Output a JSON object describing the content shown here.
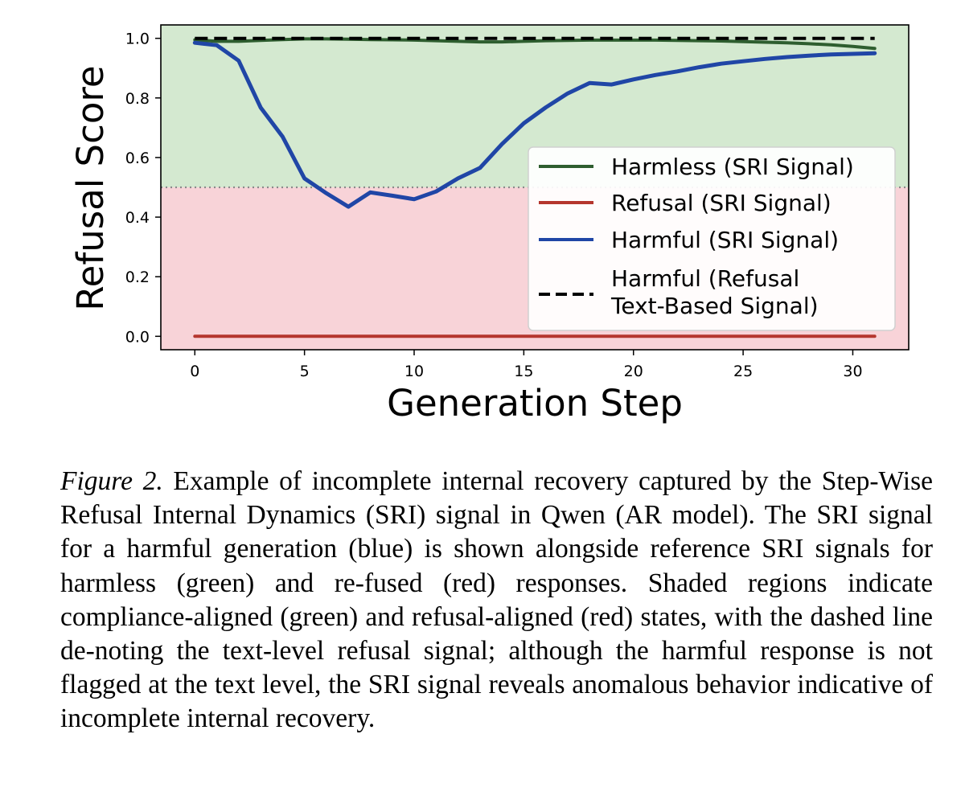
{
  "chart_data": {
    "type": "line",
    "xlabel": "Generation Step",
    "ylabel": "Refusal Score",
    "xlim": [
      -1.55,
      32.55
    ],
    "ylim": [
      -0.045,
      1.045
    ],
    "xticks": [
      0,
      5,
      10,
      15,
      20,
      25,
      30
    ],
    "xtick_labels": [
      "0",
      "5",
      "10",
      "15",
      "20",
      "25",
      "30"
    ],
    "yticks": [
      0.0,
      0.2,
      0.4,
      0.6,
      0.8,
      1.0
    ],
    "ytick_labels": [
      "0.0",
      "0.2",
      "0.4",
      "0.6",
      "0.8",
      "1.0"
    ],
    "threshold": 0.5,
    "regions": [
      {
        "name": "compliance-aligned",
        "from": 0.5,
        "to": 1.045,
        "color": "#d4e9d0"
      },
      {
        "name": "refusal-aligned",
        "from": -0.045,
        "to": 0.5,
        "color": "#f8d3d8"
      }
    ],
    "legend_position": "center-right",
    "series": [
      {
        "name": "Harmless (SRI Signal)",
        "color": "#2e5e2f",
        "style": "solid",
        "x": [
          0,
          1,
          2,
          3,
          4,
          5,
          6,
          7,
          8,
          9,
          10,
          11,
          12,
          13,
          14,
          15,
          16,
          17,
          18,
          19,
          20,
          21,
          22,
          23,
          24,
          25,
          26,
          27,
          28,
          29,
          30,
          31
        ],
        "values": [
          0.995,
          0.99,
          0.99,
          0.993,
          0.996,
          0.998,
          0.998,
          0.997,
          0.996,
          0.995,
          0.994,
          0.992,
          0.99,
          0.988,
          0.988,
          0.99,
          0.992,
          0.993,
          0.994,
          0.994,
          0.994,
          0.994,
          0.993,
          0.992,
          0.991,
          0.989,
          0.987,
          0.985,
          0.982,
          0.978,
          0.973,
          0.966
        ]
      },
      {
        "name": "Refusal (SRI Signal)",
        "color": "#b5362e",
        "style": "solid",
        "x": [
          0,
          1,
          2,
          3,
          4,
          5,
          6,
          7,
          8,
          9,
          10,
          11,
          12,
          13,
          14,
          15,
          16,
          17,
          18,
          19,
          20,
          21,
          22,
          23,
          24,
          25,
          26,
          27,
          28,
          29,
          30,
          31
        ],
        "values": [
          0,
          0,
          0,
          0,
          0,
          0,
          0,
          0,
          0,
          0,
          0,
          0,
          0,
          0,
          0,
          0,
          0,
          0,
          0,
          0,
          0,
          0,
          0,
          0,
          0,
          0,
          0,
          0,
          0,
          0,
          0,
          0
        ]
      },
      {
        "name": "Harmful (SRI Signal)",
        "color": "#2046a6",
        "style": "solid",
        "x": [
          0,
          1,
          2,
          3,
          4,
          5,
          6,
          7,
          8,
          9,
          10,
          11,
          12,
          13,
          14,
          15,
          16,
          17,
          18,
          19,
          20,
          21,
          22,
          23,
          24,
          25,
          26,
          27,
          28,
          29,
          30,
          31
        ],
        "values": [
          0.985,
          0.977,
          0.925,
          0.768,
          0.67,
          0.53,
          0.48,
          0.435,
          0.483,
          0.472,
          0.46,
          0.486,
          0.53,
          0.565,
          0.645,
          0.715,
          0.768,
          0.815,
          0.85,
          0.845,
          0.862,
          0.877,
          0.889,
          0.903,
          0.915,
          0.923,
          0.931,
          0.937,
          0.942,
          0.946,
          0.948,
          0.95
        ]
      },
      {
        "name": "Harmful (Refusal Text-Based Signal)",
        "legend_lines": [
          "Harmful (Refusal",
          "Text-Based Signal)"
        ],
        "color": "#000000",
        "style": "dashed",
        "x": [
          0,
          31
        ],
        "values": [
          1.0,
          1.0
        ]
      }
    ]
  },
  "caption": {
    "label": "Figure 2.",
    "text": "Example of incomplete internal recovery captured by the Step-Wise Refusal Internal Dynamics (SRI) signal in Qwen (AR model). The SRI signal for a harmful generation (blue) is shown alongside reference SRI signals for harmless (green) and re-fused (red) responses. Shaded regions indicate compliance-aligned (green) and refusal-aligned (red) states, with the dashed line de-noting the text-level refusal signal; although the harmful response is not flagged at the text level, the SRI signal reveals anomalous behavior indicative of incomplete internal recovery."
  }
}
